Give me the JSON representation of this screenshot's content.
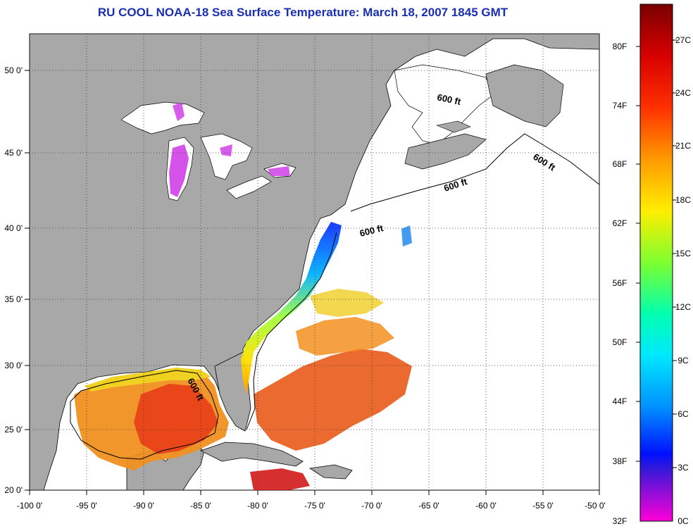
{
  "title": "RU COOL  NOAA-18  Sea Surface Temperature:  March 18, 2007 1845 GMT",
  "lon_ticks": [
    "-100 0'",
    "-95 0'",
    "-90 0'",
    "-85 0'",
    "-80 0'",
    "-75 0'",
    "-70 0'",
    "-65 0'",
    "-60 0'",
    "-55 0'",
    "-50 0'"
  ],
  "lat_ticks": [
    "50 0'",
    "45 0'",
    "40 0'",
    "35 0'",
    "30 0'",
    "25 0'",
    "20 0'"
  ],
  "contour_labels": [
    "600 ft",
    "600 ft",
    "600 ft",
    "600 ft",
    "600 ft"
  ],
  "colorbar": {
    "fahrenheit_labels": [
      "80F",
      "74F",
      "68F",
      "62F",
      "56F",
      "50F",
      "44F",
      "38F",
      "32F"
    ],
    "celsius_labels": [
      "27C",
      "24C",
      "21C",
      "18C",
      "15C",
      "12C",
      "9C",
      "6C",
      "3C",
      "0C"
    ]
  },
  "colors": {
    "land": "#a8a8a8",
    "no_data": "#ffffff",
    "title": "#1a2fb0"
  }
}
